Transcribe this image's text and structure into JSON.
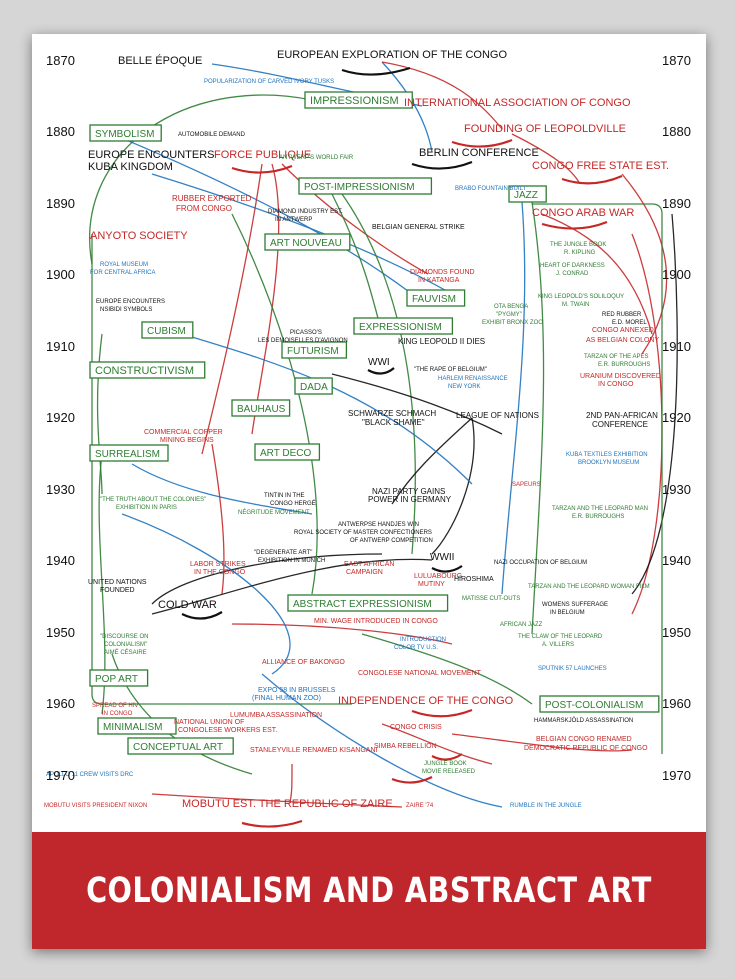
{
  "banner_title": "COLONIALISM AND ABSTRACT ART",
  "colors": {
    "art": "#2e7d32",
    "congo": "#c62828",
    "world": "#1e73be",
    "black": "#111111",
    "banner": "#c0272d"
  },
  "years": [
    "1870",
    "1880",
    "1890",
    "1900",
    "1910",
    "1920",
    "1930",
    "1940",
    "1950",
    "1960",
    "1970"
  ],
  "movements": [
    "IMPRESSIONISM",
    "SYMBOLISM",
    "POST-IMPRESSIONISM",
    "JAZZ",
    "ART NOUVEAU",
    "FAUVISM",
    "EXPRESSIONISM",
    "CUBISM",
    "FUTURISM",
    "CONSTRUCTIVISM",
    "DADA",
    "BAUHAUS",
    "SURREALISM",
    "ART DECO",
    "ABSTRACT EXPRESSIONISM",
    "POP ART",
    "POST-COLONIALISM",
    "MINIMALISM",
    "CONCEPTUAL ART"
  ],
  "labels": [
    {
      "t": "EUROPEAN EXPLORATION OF THE CONGO",
      "c": "black"
    },
    {
      "t": "BELLE ÉPOQUE",
      "c": "black"
    },
    {
      "t": "POPULARIZATION OF CARVED IVORY TUSKS",
      "c": "world"
    },
    {
      "t": "INTERNATIONAL ASSOCIATION OF CONGO",
      "c": "congo"
    },
    {
      "t": "FOUNDING OF LEOPOLDVILLE",
      "c": "congo"
    },
    {
      "t": "AUTOMOBILE DEMAND",
      "c": "black"
    },
    {
      "t": "EUROPE ENCOUNTERS",
      "c": "black"
    },
    {
      "t": "KUBA KINGDOM",
      "c": "black"
    },
    {
      "t": "FORCE PUBLIQUE",
      "c": "congo"
    },
    {
      "t": "ANTWERP'S WORLD FAIR",
      "c": "art"
    },
    {
      "t": "BERLIN CONFERENCE",
      "c": "black"
    },
    {
      "t": "CONGO FREE STATE EST.",
      "c": "congo"
    },
    {
      "t": "BRABO FOUNTAIN BUILT",
      "c": "world"
    },
    {
      "t": "RUBBER EXPORTED",
      "c": "congo"
    },
    {
      "t": "FROM CONGO",
      "c": "congo"
    },
    {
      "t": "DIAMOND INDUSTRY EST.",
      "c": "black"
    },
    {
      "t": "IN ANTWERP",
      "c": "black"
    },
    {
      "t": "CONGO ARAB WAR",
      "c": "congo"
    },
    {
      "t": "ANYOTO SOCIETY",
      "c": "congo"
    },
    {
      "t": "BELGIAN GENERAL STRIKE",
      "c": "black"
    },
    {
      "t": "THE JUNGLE BOOK",
      "c": "art"
    },
    {
      "t": "R. KIPLING",
      "c": "art"
    },
    {
      "t": "ROYAL MUSEUM",
      "c": "world"
    },
    {
      "t": "FOR CENTRAL AFRICA",
      "c": "world"
    },
    {
      "t": "DIAMONDS FOUND",
      "c": "congo"
    },
    {
      "t": "IN KATANGA",
      "c": "congo"
    },
    {
      "t": "HEART OF DARKNESS",
      "c": "art"
    },
    {
      "t": "J. CONRAD",
      "c": "art"
    },
    {
      "t": "EUROPE ENCOUNTERS",
      "c": "black"
    },
    {
      "t": "NSIBIDI SYMBOLS",
      "c": "black"
    },
    {
      "t": "OTA BENGA",
      "c": "art"
    },
    {
      "t": "\"PYGMY\"",
      "c": "art"
    },
    {
      "t": "EXHIBIT BRONX ZOO",
      "c": "art"
    },
    {
      "t": "KING LEOPOLD'S SOLILOQUY",
      "c": "art"
    },
    {
      "t": "M. TWAIN",
      "c": "art"
    },
    {
      "t": "RED RUBBER",
      "c": "black"
    },
    {
      "t": "E.D. MOREL",
      "c": "black"
    },
    {
      "t": "PICASSO'S",
      "c": "black"
    },
    {
      "t": "LES DEMOISELLES D'AVIGNON",
      "c": "black"
    },
    {
      "t": "CONGO ANNEXED",
      "c": "congo"
    },
    {
      "t": "AS BELGIAN COLONY",
      "c": "congo"
    },
    {
      "t": "KING LEOPOLD II DIES",
      "c": "black"
    },
    {
      "t": "WWI",
      "c": "black"
    },
    {
      "t": "\"THE RAPE OF BELGIUM\"",
      "c": "black"
    },
    {
      "t": "TARZAN OF THE APES",
      "c": "art"
    },
    {
      "t": "E.R. BURROUGHS",
      "c": "art"
    },
    {
      "t": "URANIUM DISCOVERED",
      "c": "congo"
    },
    {
      "t": "IN CONGO",
      "c": "congo"
    },
    {
      "t": "HARLEM RENAISSANCE",
      "c": "world"
    },
    {
      "t": "NEW YORK",
      "c": "world"
    },
    {
      "t": "SCHWARZE SCHMACH",
      "c": "black"
    },
    {
      "t": "\"BLACK SHAME\"",
      "c": "black"
    },
    {
      "t": "LEAGUE OF NATIONS",
      "c": "black"
    },
    {
      "t": "2ND PAN-AFRICAN",
      "c": "black"
    },
    {
      "t": "CONFERENCE",
      "c": "black"
    },
    {
      "t": "COMMERCIAL COPPER",
      "c": "congo"
    },
    {
      "t": "MINING BEGINS",
      "c": "congo"
    },
    {
      "t": "KUBA TEXTILES EXHIBITION",
      "c": "world"
    },
    {
      "t": "BROOKLYN MUSEUM",
      "c": "world"
    },
    {
      "t": "SAPEURS",
      "c": "congo"
    },
    {
      "t": "TINTIN IN THE",
      "c": "black"
    },
    {
      "t": "CONGO HERGÉ",
      "c": "black"
    },
    {
      "t": "\"THE TRUTH ABOUT THE COLONIES\"",
      "c": "art"
    },
    {
      "t": "EXHIBITION IN PARIS",
      "c": "art"
    },
    {
      "t": "NAZI PARTY GAINS",
      "c": "black"
    },
    {
      "t": "POWER IN GERMANY",
      "c": "black"
    },
    {
      "t": "NÉGRITUDE MOVEMENT",
      "c": "art"
    },
    {
      "t": "TARZAN AND THE LEOPARD MAN",
      "c": "art"
    },
    {
      "t": "E.R. BURROUGHS",
      "c": "art"
    },
    {
      "t": "ANTWERPSE HANDJES WIN",
      "c": "black"
    },
    {
      "t": "ROYAL SOCIETY OF MASTER CONFECTIONERS",
      "c": "black"
    },
    {
      "t": "OF ANTWERP COMPETITION",
      "c": "black"
    },
    {
      "t": "\"DEGENERATE ART\"",
      "c": "black"
    },
    {
      "t": "EXHIBITION IN MUNICH",
      "c": "black"
    },
    {
      "t": "WWII",
      "c": "black"
    },
    {
      "t": "NAZI OCCUPATION OF BELGIUM",
      "c": "black"
    },
    {
      "t": "LABOR STRIKES",
      "c": "congo"
    },
    {
      "t": "IN THE CONGO",
      "c": "congo"
    },
    {
      "t": "EAST AFRICAN",
      "c": "congo"
    },
    {
      "t": "CAMPAIGN",
      "c": "congo"
    },
    {
      "t": "LULUABOURG",
      "c": "congo"
    },
    {
      "t": "MUTINY",
      "c": "congo"
    },
    {
      "t": "HIROSHIMA",
      "c": "black"
    },
    {
      "t": "TARZAN AND THE LEOPARD WOMAN FILM",
      "c": "art"
    },
    {
      "t": "UNITED NATIONS",
      "c": "black"
    },
    {
      "t": "FOUNDED",
      "c": "black"
    },
    {
      "t": "MATISSE CUT-OUTS",
      "c": "art"
    },
    {
      "t": "COLD WAR",
      "c": "black"
    },
    {
      "t": "WOMENS SUFFERAGE",
      "c": "black"
    },
    {
      "t": "IN BELGIUM",
      "c": "black"
    },
    {
      "t": "MIN. WAGE INTRODUCED IN CONGO",
      "c": "congo"
    },
    {
      "t": "AFRICAN JAZZ",
      "c": "art"
    },
    {
      "t": "\"DISCOURSE ON",
      "c": "art"
    },
    {
      "t": "COLONIALISM\"",
      "c": "art"
    },
    {
      "t": "AIMÉ CÉSAIRE",
      "c": "art"
    },
    {
      "t": "INTRODUCTION",
      "c": "world"
    },
    {
      "t": "COLOR TV U.S.",
      "c": "world"
    },
    {
      "t": "THE CLAW OF THE LEOPARD",
      "c": "art"
    },
    {
      "t": "A. VILLERS",
      "c": "art"
    },
    {
      "t": "ALLIANCE OF BAKONGO",
      "c": "congo"
    },
    {
      "t": "SPUTNIK 57 LAUNCHES",
      "c": "world"
    },
    {
      "t": "CONGOLESE NATIONAL MOVEMENT",
      "c": "congo"
    },
    {
      "t": "EXPO 58 IN BRUSSELS",
      "c": "world"
    },
    {
      "t": "(FINAL HUMAN ZOO)",
      "c": "world"
    },
    {
      "t": "INDEPENDENCE OF THE CONGO",
      "c": "congo"
    },
    {
      "t": "SPREAD OF HIV",
      "c": "congo"
    },
    {
      "t": "IN CONGO",
      "c": "congo"
    },
    {
      "t": "LUMUMBA ASSASSINATION",
      "c": "congo"
    },
    {
      "t": "HAMMARSKJÖLD ASSASSINATION",
      "c": "black"
    },
    {
      "t": "NATIONAL UNION OF",
      "c": "congo"
    },
    {
      "t": "CONGOLESE WORKERS EST.",
      "c": "congo"
    },
    {
      "t": "CONGO CRISIS",
      "c": "congo"
    },
    {
      "t": "BELGIAN CONGO RENAMED",
      "c": "congo"
    },
    {
      "t": "DEMOCRATIC REPUBLIC OF CONGO",
      "c": "congo"
    },
    {
      "t": "SIMBA REBELLION",
      "c": "congo"
    },
    {
      "t": "STANLEYVILLE RENAMED KISANGANI",
      "c": "congo"
    },
    {
      "t": "APOLLO 11 CREW VISITS DRC",
      "c": "world"
    },
    {
      "t": "JUNGLE BOOK",
      "c": "art"
    },
    {
      "t": "MOVIE RELEASED",
      "c": "art"
    },
    {
      "t": "MOBUTU EST. THE REPUBLIC OF ZAIRE",
      "c": "congo"
    },
    {
      "t": "MOBUTU VISITS PRESIDENT NIXON",
      "c": "congo"
    },
    {
      "t": "ZAIRE '74",
      "c": "congo"
    },
    {
      "t": "RUMBLE IN THE JUNGLE",
      "c": "world"
    }
  ]
}
